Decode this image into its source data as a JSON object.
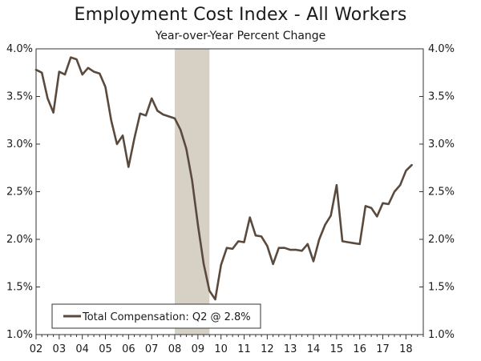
{
  "chart_data": {
    "type": "line",
    "title": "Employment Cost Index - All Workers",
    "subtitle": "Year-over-Year Percent Change",
    "xlabel": "",
    "ylabel": "",
    "xlim": [
      2002.0,
      2018.75
    ],
    "ylim": [
      1.0,
      4.0
    ],
    "y_ticks": [
      1.0,
      1.5,
      2.0,
      2.5,
      3.0,
      3.5,
      4.0
    ],
    "y_tick_labels": [
      "1.0%",
      "1.5%",
      "2.0%",
      "2.5%",
      "3.0%",
      "3.5%",
      "4.0%"
    ],
    "x_tick_labels": [
      "02",
      "03",
      "04",
      "05",
      "06",
      "07",
      "08",
      "09",
      "10",
      "11",
      "12",
      "13",
      "14",
      "15",
      "16",
      "17",
      "18"
    ],
    "recession_shading": [
      2008.0,
      2009.5
    ],
    "series": [
      {
        "name": "Total Compensation: Q2 @ 2.8%",
        "color": "#5a4a3e",
        "x": [
          2002.0,
          2002.25,
          2002.5,
          2002.75,
          2003.0,
          2003.25,
          2003.5,
          2003.75,
          2004.0,
          2004.25,
          2004.5,
          2004.75,
          2005.0,
          2005.25,
          2005.5,
          2005.75,
          2006.0,
          2006.25,
          2006.5,
          2006.75,
          2007.0,
          2007.25,
          2007.5,
          2007.75,
          2008.0,
          2008.25,
          2008.5,
          2008.75,
          2009.0,
          2009.25,
          2009.5,
          2009.75,
          2010.0,
          2010.25,
          2010.5,
          2010.75,
          2011.0,
          2011.25,
          2011.5,
          2011.75,
          2012.0,
          2012.25,
          2012.5,
          2012.75,
          2013.0,
          2013.25,
          2013.5,
          2013.75,
          2014.0,
          2014.25,
          2014.5,
          2014.75,
          2015.0,
          2015.25,
          2015.5,
          2015.75,
          2016.0,
          2016.25,
          2016.5,
          2016.75,
          2017.0,
          2017.25,
          2017.5,
          2017.75,
          2018.0,
          2018.25
        ],
        "values": [
          3.78,
          3.75,
          3.48,
          3.33,
          3.76,
          3.73,
          3.91,
          3.89,
          3.73,
          3.8,
          3.76,
          3.74,
          3.6,
          3.25,
          3.0,
          3.09,
          2.76,
          3.06,
          3.32,
          3.3,
          3.48,
          3.35,
          3.31,
          3.29,
          3.27,
          3.15,
          2.95,
          2.62,
          2.15,
          1.74,
          1.46,
          1.37,
          1.73,
          1.91,
          1.9,
          1.98,
          1.97,
          2.23,
          2.04,
          2.03,
          1.93,
          1.74,
          1.91,
          1.91,
          1.89,
          1.89,
          1.88,
          1.95,
          1.77,
          2.0,
          2.15,
          2.25,
          2.57,
          1.98,
          1.97,
          1.96,
          1.95,
          2.35,
          2.33,
          2.24,
          2.38,
          2.37,
          2.5,
          2.57,
          2.72,
          2.78
        ]
      }
    ],
    "legend": {
      "position": "bottom-left",
      "label": "Total Compensation: Q2 @ 2.8%"
    }
  }
}
